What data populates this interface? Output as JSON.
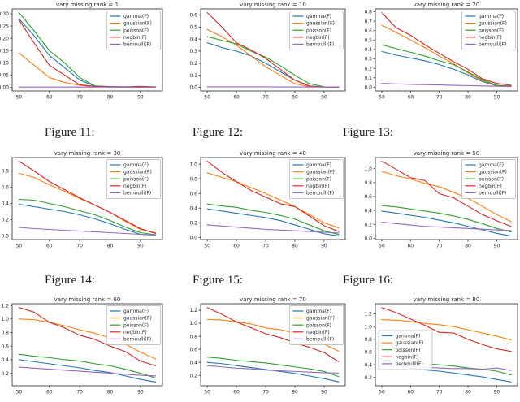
{
  "figure": {
    "background": "#ffffff",
    "axis_color": "#262626",
    "legend_border": "#b3b3b3"
  },
  "palette": {
    "blue": "#1f77b4",
    "orange": "#ff7f0e",
    "green": "#2ca02c",
    "red": "#d62728",
    "purple": "#9467bd"
  },
  "legend_labels": [
    "gamma(F)",
    "gaussian(F)",
    "poisson(F)",
    "negbin(F)",
    "bernoulli(F)"
  ],
  "captions": [
    {
      "label": "Figure 11:"
    },
    {
      "label": "Figure 12:"
    },
    {
      "label": "Figure 13:"
    },
    {
      "label": "Figure 14:"
    },
    {
      "label": "Figure 15:"
    },
    {
      "label": "Figure 16:"
    }
  ],
  "chart_data": [
    {
      "type": "line",
      "title": "vary missing rank = 1",
      "x": [
        50,
        55,
        60,
        65,
        70,
        75,
        80,
        85,
        90,
        95
      ],
      "xticks": [
        50,
        60,
        70,
        80,
        90
      ],
      "xlim": [
        47.75,
        97.25
      ],
      "ylim": [
        -0.015,
        0.32
      ],
      "yticks": [
        0.0,
        0.05,
        0.1,
        0.15,
        0.2,
        0.25,
        0.3
      ],
      "ytick_decimals": 2,
      "legend_pos": "upper-right",
      "grid": false,
      "series": [
        {
          "name": "gamma(F)",
          "color": "#1f77b4",
          "values": [
            0.28,
            0.21,
            0.13,
            0.08,
            0.03,
            0.005,
            0.003,
            0.002,
            0.001,
            0.001
          ]
        },
        {
          "name": "gaussian(F)",
          "color": "#ff7f0e",
          "values": [
            0.14,
            0.09,
            0.04,
            0.02,
            0.008,
            0.003,
            0.001,
            0.001,
            0.001,
            0.001
          ]
        },
        {
          "name": "poisson(F)",
          "color": "#2ca02c",
          "values": [
            0.305,
            0.23,
            0.15,
            0.1,
            0.04,
            0.006,
            0.002,
            0.001,
            0.001,
            0.001
          ]
        },
        {
          "name": "negbin(F)",
          "color": "#d62728",
          "values": [
            0.275,
            0.18,
            0.09,
            0.05,
            0.01,
            0.004,
            0.002,
            0.002,
            0.004,
            0.002
          ]
        },
        {
          "name": "bernoulli(F)",
          "color": "#9467bd",
          "values": [
            0.001,
            0.001,
            0.001,
            0.001,
            0.001,
            0.001,
            0.001,
            0.001,
            0.001,
            0.001
          ]
        }
      ]
    },
    {
      "type": "line",
      "title": "vary missing rank = 10",
      "x": [
        50,
        55,
        60,
        65,
        70,
        75,
        80,
        85,
        90,
        95
      ],
      "xticks": [
        50,
        60,
        70,
        80,
        90
      ],
      "xlim": [
        47.75,
        97.25
      ],
      "ylim": [
        -0.03,
        0.65
      ],
      "yticks": [
        0.0,
        0.1,
        0.2,
        0.3,
        0.4,
        0.5,
        0.6
      ],
      "ytick_decimals": 1,
      "legend_pos": "upper-right",
      "grid": false,
      "series": [
        {
          "name": "gamma(F)",
          "color": "#1f77b4",
          "values": [
            0.37,
            0.33,
            0.3,
            0.26,
            0.2,
            0.13,
            0.06,
            0.01,
            0.003,
            0.002
          ]
        },
        {
          "name": "gaussian(F)",
          "color": "#ff7f0e",
          "values": [
            0.48,
            0.42,
            0.35,
            0.26,
            0.17,
            0.1,
            0.03,
            0.005,
            0.002,
            0.002
          ]
        },
        {
          "name": "poisson(F)",
          "color": "#2ca02c",
          "values": [
            0.42,
            0.39,
            0.36,
            0.3,
            0.25,
            0.18,
            0.1,
            0.03,
            0.004,
            0.002
          ]
        },
        {
          "name": "negbin(F)",
          "color": "#d62728",
          "values": [
            0.62,
            0.5,
            0.37,
            0.31,
            0.24,
            0.15,
            0.06,
            0.01,
            0.003,
            0.002
          ]
        },
        {
          "name": "bernoulli(F)",
          "color": "#9467bd",
          "values": [
            0.004,
            0.004,
            0.004,
            0.004,
            0.004,
            0.003,
            0.003,
            0.003,
            0.003,
            0.003
          ]
        }
      ]
    },
    {
      "type": "line",
      "title": "vary missing rank = 20",
      "x": [
        50,
        55,
        60,
        65,
        70,
        75,
        80,
        85,
        90,
        95
      ],
      "xticks": [
        50,
        60,
        70,
        80,
        90
      ],
      "xlim": [
        47.75,
        97.25
      ],
      "ylim": [
        -0.04,
        0.83
      ],
      "yticks": [
        0.0,
        0.1,
        0.2,
        0.3,
        0.4,
        0.5,
        0.6,
        0.7,
        0.8
      ],
      "ytick_decimals": 1,
      "legend_pos": "upper-right",
      "grid": false,
      "series": [
        {
          "name": "gamma(F)",
          "color": "#1f77b4",
          "values": [
            0.38,
            0.34,
            0.31,
            0.28,
            0.24,
            0.19,
            0.13,
            0.06,
            0.015,
            0.01
          ]
        },
        {
          "name": "gaussian(F)",
          "color": "#ff7f0e",
          "values": [
            0.66,
            0.58,
            0.5,
            0.42,
            0.33,
            0.25,
            0.15,
            0.07,
            0.02,
            0.01
          ]
        },
        {
          "name": "poisson(F)",
          "color": "#2ca02c",
          "values": [
            0.45,
            0.41,
            0.37,
            0.33,
            0.28,
            0.24,
            0.16,
            0.08,
            0.02,
            0.01
          ]
        },
        {
          "name": "negbin(F)",
          "color": "#d62728",
          "values": [
            0.79,
            0.63,
            0.55,
            0.45,
            0.36,
            0.27,
            0.19,
            0.09,
            0.04,
            0.02
          ]
        },
        {
          "name": "bernoulli(F)",
          "color": "#9467bd",
          "values": [
            0.04,
            0.035,
            0.03,
            0.027,
            0.024,
            0.02,
            0.017,
            0.013,
            0.01,
            0.007
          ]
        }
      ]
    },
    {
      "type": "line",
      "title": "vary missing rank = 30",
      "x": [
        50,
        55,
        60,
        65,
        70,
        75,
        80,
        85,
        90,
        95
      ],
      "xticks": [
        50,
        60,
        70,
        80,
        90
      ],
      "xlim": [
        47.75,
        97.25
      ],
      "ylim": [
        -0.045,
        0.965
      ],
      "yticks": [
        0.0,
        0.2,
        0.4,
        0.6,
        0.8
      ],
      "ytick_decimals": 1,
      "legend_pos": "upper-right",
      "grid": false,
      "series": [
        {
          "name": "gamma(F)",
          "color": "#1f77b4",
          "values": [
            0.39,
            0.36,
            0.33,
            0.3,
            0.26,
            0.21,
            0.15,
            0.08,
            0.02,
            0.01
          ]
        },
        {
          "name": "gaussian(F)",
          "color": "#ff7f0e",
          "values": [
            0.77,
            0.72,
            0.63,
            0.55,
            0.46,
            0.38,
            0.29,
            0.18,
            0.08,
            0.04
          ]
        },
        {
          "name": "poisson(F)",
          "color": "#2ca02c",
          "values": [
            0.45,
            0.44,
            0.4,
            0.36,
            0.31,
            0.26,
            0.19,
            0.11,
            0.04,
            0.015
          ]
        },
        {
          "name": "negbin(F)",
          "color": "#d62728",
          "values": [
            0.92,
            0.8,
            0.67,
            0.57,
            0.47,
            0.38,
            0.29,
            0.19,
            0.09,
            0.03
          ]
        },
        {
          "name": "bernoulli(F)",
          "color": "#9467bd",
          "values": [
            0.105,
            0.09,
            0.08,
            0.07,
            0.06,
            0.05,
            0.04,
            0.03,
            0.02,
            0.015
          ]
        }
      ]
    },
    {
      "type": "line",
      "title": "vary missing rank = 40",
      "x": [
        50,
        55,
        60,
        65,
        70,
        75,
        80,
        85,
        90,
        95
      ],
      "xticks": [
        50,
        60,
        70,
        80,
        90
      ],
      "xlim": [
        47.75,
        97.25
      ],
      "ylim": [
        -0.03,
        1.09
      ],
      "yticks": [
        0.0,
        0.2,
        0.4,
        0.6,
        0.8,
        1.0
      ],
      "ytick_decimals": 1,
      "legend_pos": "upper-right",
      "grid": false,
      "series": [
        {
          "name": "gamma(F)",
          "color": "#1f77b4",
          "values": [
            0.39,
            0.36,
            0.33,
            0.3,
            0.27,
            0.23,
            0.17,
            0.11,
            0.05,
            0.02
          ]
        },
        {
          "name": "gaussian(F)",
          "color": "#ff7f0e",
          "values": [
            0.88,
            0.82,
            0.76,
            0.68,
            0.6,
            0.51,
            0.42,
            0.31,
            0.2,
            0.13
          ]
        },
        {
          "name": "poisson(F)",
          "color": "#2ca02c",
          "values": [
            0.455,
            0.43,
            0.41,
            0.37,
            0.34,
            0.3,
            0.25,
            0.17,
            0.09,
            0.04
          ]
        },
        {
          "name": "negbin(F)",
          "color": "#d62728",
          "values": [
            1.04,
            0.89,
            0.76,
            0.64,
            0.55,
            0.46,
            0.42,
            0.29,
            0.16,
            0.08
          ]
        },
        {
          "name": "bernoulli(F)",
          "color": "#9467bd",
          "values": [
            0.17,
            0.155,
            0.14,
            0.125,
            0.11,
            0.1,
            0.09,
            0.08,
            0.07,
            0.06
          ]
        }
      ]
    },
    {
      "type": "line",
      "title": "vary missing rank = 50",
      "x": [
        50,
        55,
        60,
        65,
        70,
        75,
        80,
        85,
        90,
        95
      ],
      "xticks": [
        50,
        60,
        70,
        80,
        90
      ],
      "xlim": [
        47.75,
        97.25
      ],
      "ylim": [
        -0.02,
        1.16
      ],
      "yticks": [
        0.0,
        0.2,
        0.4,
        0.6,
        0.8,
        1.0
      ],
      "ytick_decimals": 1,
      "legend_pos": "upper-right",
      "grid": false,
      "series": [
        {
          "name": "gamma(F)",
          "color": "#1f77b4",
          "values": [
            0.39,
            0.36,
            0.33,
            0.3,
            0.26,
            0.22,
            0.17,
            0.12,
            0.07,
            0.03
          ]
        },
        {
          "name": "gaussian(F)",
          "color": "#ff7f0e",
          "values": [
            0.96,
            0.9,
            0.85,
            0.79,
            0.74,
            0.66,
            0.57,
            0.46,
            0.34,
            0.24
          ]
        },
        {
          "name": "poisson(F)",
          "color": "#2ca02c",
          "values": [
            0.47,
            0.45,
            0.42,
            0.39,
            0.36,
            0.32,
            0.27,
            0.21,
            0.14,
            0.09
          ]
        },
        {
          "name": "negbin(F)",
          "color": "#d62728",
          "values": [
            1.11,
            0.99,
            0.87,
            0.83,
            0.64,
            0.58,
            0.46,
            0.34,
            0.25,
            0.17
          ]
        },
        {
          "name": "bernoulli(F)",
          "color": "#9467bd",
          "values": [
            0.23,
            0.21,
            0.19,
            0.17,
            0.16,
            0.15,
            0.14,
            0.13,
            0.12,
            0.11
          ]
        }
      ]
    },
    {
      "type": "line",
      "title": "vary missing rank = 60",
      "x": [
        50,
        55,
        60,
        65,
        70,
        75,
        80,
        85,
        90,
        95
      ],
      "xticks": [
        50,
        60,
        70,
        80,
        90
      ],
      "xlim": [
        47.75,
        97.25
      ],
      "ylim": [
        0.015,
        1.225
      ],
      "yticks": [
        0.2,
        0.4,
        0.6,
        0.8,
        1.0,
        1.2
      ],
      "ytick_decimals": 1,
      "legend_pos": "upper-right",
      "grid": false,
      "series": [
        {
          "name": "gamma(F)",
          "color": "#1f77b4",
          "values": [
            0.4,
            0.37,
            0.34,
            0.31,
            0.28,
            0.24,
            0.21,
            0.16,
            0.11,
            0.07
          ]
        },
        {
          "name": "gaussian(F)",
          "color": "#ff7f0e",
          "values": [
            1.0,
            0.99,
            0.95,
            0.9,
            0.84,
            0.79,
            0.72,
            0.63,
            0.51,
            0.41
          ]
        },
        {
          "name": "poisson(F)",
          "color": "#2ca02c",
          "values": [
            0.48,
            0.45,
            0.43,
            0.4,
            0.38,
            0.34,
            0.31,
            0.26,
            0.2,
            0.13
          ]
        },
        {
          "name": "negbin(F)",
          "color": "#d62728",
          "values": [
            1.17,
            1.1,
            0.95,
            0.87,
            0.76,
            0.7,
            0.6,
            0.52,
            0.38,
            0.31
          ]
        },
        {
          "name": "bernoulli(F)",
          "color": "#9467bd",
          "values": [
            0.29,
            0.275,
            0.26,
            0.245,
            0.23,
            0.215,
            0.2,
            0.185,
            0.17,
            0.16
          ]
        }
      ]
    },
    {
      "type": "line",
      "title": "vary missing rank = 70",
      "x": [
        50,
        55,
        60,
        65,
        70,
        75,
        80,
        85,
        90,
        95
      ],
      "xticks": [
        50,
        60,
        70,
        80,
        90
      ],
      "xlim": [
        47.75,
        97.25
      ],
      "ylim": [
        0.04,
        1.3
      ],
      "yticks": [
        0.2,
        0.4,
        0.6,
        0.8,
        1.0,
        1.2
      ],
      "ytick_decimals": 1,
      "legend_pos": "upper-right",
      "grid": false,
      "series": [
        {
          "name": "gamma(F)",
          "color": "#1f77b4",
          "values": [
            0.4,
            0.38,
            0.35,
            0.32,
            0.29,
            0.26,
            0.23,
            0.19,
            0.15,
            0.1
          ]
        },
        {
          "name": "gaussian(F)",
          "color": "#ff7f0e",
          "values": [
            1.06,
            1.05,
            1.02,
            0.99,
            0.93,
            0.9,
            0.85,
            0.78,
            0.68,
            0.57
          ]
        },
        {
          "name": "poisson(F)",
          "color": "#2ca02c",
          "values": [
            0.48,
            0.46,
            0.43,
            0.41,
            0.39,
            0.36,
            0.33,
            0.3,
            0.26,
            0.18
          ]
        },
        {
          "name": "negbin(F)",
          "color": "#d62728",
          "values": [
            1.24,
            1.14,
            1.02,
            0.93,
            0.84,
            0.78,
            0.7,
            0.63,
            0.55,
            0.41
          ]
        },
        {
          "name": "bernoulli(F)",
          "color": "#9467bd",
          "values": [
            0.35,
            0.33,
            0.31,
            0.3,
            0.28,
            0.27,
            0.26,
            0.25,
            0.24,
            0.235
          ]
        }
      ]
    },
    {
      "type": "line",
      "title": "vary missing rank = 80",
      "x": [
        50,
        55,
        60,
        65,
        70,
        75,
        80,
        85,
        90,
        95
      ],
      "xticks": [
        50,
        60,
        70,
        80,
        90
      ],
      "xlim": [
        47.75,
        97.25
      ],
      "ylim": [
        0.07,
        1.36
      ],
      "yticks": [
        0.2,
        0.4,
        0.6,
        0.8,
        1.0,
        1.2
      ],
      "ytick_decimals": 1,
      "legend_pos": "center-left",
      "grid": false,
      "series": [
        {
          "name": "gamma(F)",
          "color": "#1f77b4",
          "values": [
            0.41,
            0.38,
            0.35,
            0.32,
            0.3,
            0.27,
            0.24,
            0.21,
            0.17,
            0.13
          ]
        },
        {
          "name": "gaussian(F)",
          "color": "#ff7f0e",
          "values": [
            1.11,
            1.1,
            1.08,
            1.05,
            1.03,
            1.0,
            0.95,
            0.9,
            0.85,
            0.79
          ]
        },
        {
          "name": "poisson(F)",
          "color": "#2ca02c",
          "values": [
            0.48,
            0.46,
            0.44,
            0.42,
            0.4,
            0.38,
            0.35,
            0.33,
            0.3,
            0.24
          ]
        },
        {
          "name": "negbin(F)",
          "color": "#d62728",
          "values": [
            1.3,
            1.22,
            1.12,
            1.02,
            0.91,
            0.9,
            0.8,
            0.72,
            0.65,
            0.61
          ]
        },
        {
          "name": "bernoulli(F)",
          "color": "#9467bd",
          "values": [
            0.4,
            0.39,
            0.38,
            0.36,
            0.35,
            0.34,
            0.34,
            0.33,
            0.35,
            0.31
          ]
        }
      ]
    }
  ]
}
